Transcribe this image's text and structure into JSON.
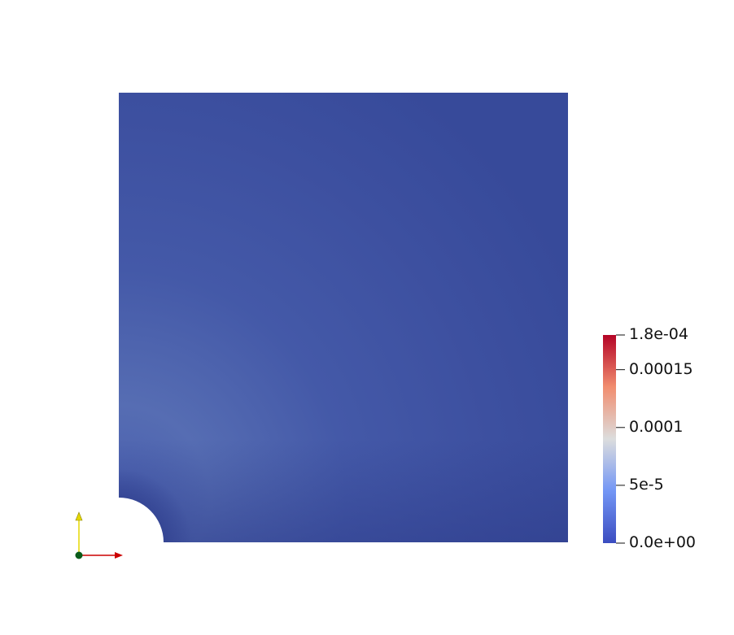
{
  "colorbar": {
    "min": 0,
    "max": 0.00018,
    "ticks": [
      {
        "value": 0.00018,
        "label": "1.8e-04"
      },
      {
        "value": 0.00015,
        "label": "0.00015"
      },
      {
        "value": 0.0001,
        "label": "0.0001"
      },
      {
        "value": 5e-05,
        "label": "5e-5"
      },
      {
        "value": 0,
        "label": "0.0e+00"
      }
    ],
    "colors": {
      "low": "#3b4cc0",
      "mid": "#dddddd",
      "high": "#b40426"
    }
  },
  "field": {
    "background_color": "#3c4ea2",
    "highlight_color": "#5a72b4",
    "shadow_color": "#2f3e8c"
  },
  "axes": {
    "x_color": "#cc0000",
    "y_color": "#e6d800",
    "origin_color": "#0a5c1a"
  }
}
